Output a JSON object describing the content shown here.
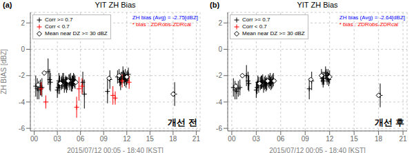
{
  "chart_data": [
    {
      "type": "scatter",
      "title": "YIT ZH Bias",
      "panel_label": "(a)",
      "watermark": "개선 전",
      "xlabel": "2015/07/12 00:05 - 18:40 [KST]",
      "ylabel": "ZH BIAS [dBZ]",
      "xlim": [
        -0.5,
        21.5
      ],
      "ylim": [
        -6.2,
        2.8
      ],
      "xticks": [
        {
          "value": 0,
          "label": "00"
        },
        {
          "value": 3,
          "label": "03"
        },
        {
          "value": 6,
          "label": "06"
        },
        {
          "value": 9,
          "label": "09"
        },
        {
          "value": 12,
          "label": "12"
        },
        {
          "value": 15,
          "label": "15"
        },
        {
          "value": 18,
          "label": "18"
        },
        {
          "value": 21,
          "label": "21"
        }
      ],
      "yticks": [
        -6,
        -4,
        -2,
        0,
        2
      ],
      "grid": true,
      "legend": "upper left",
      "annotations": [
        {
          "text": "ZH bias (Avg) = -2.75[dBZ]",
          "color": "blue"
        },
        {
          "text": "* bias : ZDRobs-ZDRcal",
          "color": "red"
        }
      ],
      "series": [
        {
          "name": "Corr >= 0.7",
          "color": "black",
          "marker": "plus",
          "x": [
            0.2,
            0.4,
            0.6,
            0.8,
            1.0,
            1.8,
            2.0,
            2.1,
            3.0,
            3.1,
            3.2,
            3.3,
            3.5,
            3.6,
            3.7,
            3.8,
            3.9,
            4.0,
            4.1,
            4.2,
            4.3,
            4.5,
            4.6,
            4.7,
            4.8,
            4.9,
            5.0,
            5.1,
            5.2,
            5.3,
            6.3,
            6.5,
            9.5,
            9.8,
            10.8,
            11.0,
            11.1,
            11.2,
            11.3,
            11.5,
            11.6,
            11.7,
            11.8,
            11.9,
            12.0,
            12.1,
            12.2,
            18.2
          ],
          "values": [
            -2.8,
            -3.0,
            -3.1,
            -2.9,
            -2.9,
            -1.7,
            -2.3,
            -2.5,
            -3.1,
            -2.9,
            -2.4,
            -2.7,
            -2.6,
            -2.5,
            -2.4,
            -2.3,
            -2.8,
            -2.6,
            -2.5,
            -2.7,
            -2.6,
            -2.4,
            -2.5,
            -2.3,
            -2.7,
            -2.6,
            -2.5,
            -2.3,
            -2.4,
            -2.5,
            -2.5,
            -3.4,
            -3.2,
            -2.3,
            -2.1,
            -2.0,
            -2.3,
            -2.5,
            -2.2,
            -1.8,
            -2.1,
            -2.3,
            -2.0,
            -2.4,
            -2.2,
            -2.1,
            -1.9,
            -3.4
          ],
          "yerr": [
            0.8,
            0.8,
            0.7,
            0.6,
            0.7,
            1.0,
            0.8,
            0.7,
            0.6,
            0.5,
            0.6,
            0.7,
            0.5,
            0.5,
            0.6,
            0.5,
            0.5,
            0.5,
            0.5,
            0.6,
            0.5,
            0.5,
            0.6,
            0.5,
            0.5,
            0.6,
            0.5,
            0.5,
            0.5,
            0.5,
            0.8,
            1.1,
            0.9,
            0.7,
            0.5,
            0.5,
            0.5,
            0.6,
            0.5,
            0.5,
            0.5,
            0.5,
            0.5,
            0.5,
            0.5,
            0.5,
            0.5,
            0.9
          ]
        },
        {
          "name": "Corr < 0.7",
          "color": "red",
          "marker": "plus",
          "x": [
            0.9,
            1.5,
            5.5,
            5.8,
            6.2,
            10.2,
            10.5,
            11.4,
            12.3
          ],
          "values": [
            -3.0,
            -4.0,
            -4.4,
            -3.0,
            -2.8,
            -3.5,
            -3.7,
            -2.4,
            -2.5
          ],
          "yerr": [
            0.5,
            0.5,
            0.8,
            0.9,
            0.6,
            0.7,
            0.5,
            0.5,
            0.5
          ]
        },
        {
          "name": "Mean near DZ >= 30 dBZ",
          "color": "black",
          "marker": "diamond",
          "x": [
            0.5,
            1.3,
            3.4,
            4.4,
            5.4,
            9.7,
            11.0,
            12.0,
            18.0
          ],
          "values": [
            -2.7,
            -1.8,
            -2.6,
            -2.4,
            -2.5,
            -2.2,
            -2.0,
            -2.1,
            -3.4
          ]
        }
      ]
    },
    {
      "type": "scatter",
      "title": "YIT ZH Bias",
      "panel_label": "(b)",
      "watermark": "개선 후",
      "xlabel": "2015/07/12 00:05 - 18:40 [KST]",
      "xlim": [
        -0.5,
        21.5
      ],
      "ylim": [
        -6.2,
        2.8
      ],
      "xticks": [
        {
          "value": 0,
          "label": "00"
        },
        {
          "value": 3,
          "label": "03"
        },
        {
          "value": 6,
          "label": "06"
        },
        {
          "value": 9,
          "label": "09"
        },
        {
          "value": 12,
          "label": "12"
        },
        {
          "value": 15,
          "label": "15"
        },
        {
          "value": 18,
          "label": "18"
        },
        {
          "value": 21,
          "label": "21"
        }
      ],
      "yticks": [
        -6,
        -4,
        -2,
        0,
        2
      ],
      "grid": true,
      "legend": "upper left",
      "annotations": [
        {
          "text": "ZH bias (Avg) = -2.64[dBZ]",
          "color": "blue"
        },
        {
          "text": "* bias : ZDRobs-ZDRcal",
          "color": "red"
        }
      ],
      "series": [
        {
          "name": "Corr >= 0.7",
          "color": "black",
          "marker": "plus",
          "x": [
            0.2,
            0.4,
            0.6,
            0.8,
            1.0,
            1.8,
            2.0,
            2.1,
            3.0,
            3.1,
            3.2,
            3.3,
            3.5,
            3.6,
            3.7,
            3.8,
            3.9,
            4.0,
            4.1,
            4.2,
            4.3,
            4.5,
            4.6,
            4.7,
            4.8,
            4.9,
            5.0,
            5.1,
            9.5,
            9.8,
            11.0,
            11.1,
            11.2,
            11.3,
            11.5,
            11.6,
            11.7,
            11.8,
            11.9,
            12.0,
            18.2
          ],
          "values": [
            -2.9,
            -3.1,
            -3.2,
            -3.0,
            -2.9,
            -2.0,
            -2.4,
            -2.6,
            -3.1,
            -2.9,
            -2.5,
            -2.7,
            -2.6,
            -2.5,
            -2.5,
            -2.4,
            -2.8,
            -2.6,
            -2.5,
            -2.7,
            -2.6,
            -2.4,
            -2.5,
            -2.3,
            -2.6,
            -2.5,
            -2.4,
            -2.3,
            -3.0,
            -2.4,
            -2.0,
            -2.2,
            -2.4,
            -2.2,
            -1.8,
            -2.0,
            -2.2,
            -2.0,
            -2.3,
            -2.1,
            -3.5
          ],
          "yerr": [
            0.7,
            0.7,
            0.6,
            0.6,
            0.6,
            0.8,
            0.7,
            0.6,
            0.6,
            0.5,
            0.5,
            0.6,
            0.5,
            0.5,
            0.5,
            0.5,
            0.5,
            0.5,
            0.5,
            0.5,
            0.5,
            0.5,
            0.5,
            0.5,
            0.5,
            0.5,
            0.5,
            0.5,
            0.8,
            0.7,
            0.5,
            0.5,
            0.5,
            0.5,
            0.5,
            0.5,
            0.5,
            0.5,
            0.5,
            0.5,
            0.9
          ]
        },
        {
          "name": "Corr < 0.7",
          "color": "red",
          "marker": "plus",
          "x": [],
          "values": [],
          "yerr": []
        },
        {
          "name": "Mean near DZ >= 30 dBZ",
          "color": "black",
          "marker": "diamond",
          "x": [
            0.5,
            1.3,
            3.4,
            4.4,
            5.2,
            9.7,
            11.0,
            12.0,
            18.0
          ],
          "values": [
            -2.8,
            -2.0,
            -2.6,
            -2.4,
            -2.4,
            -2.3,
            -2.0,
            -2.1,
            -3.5
          ]
        }
      ]
    }
  ]
}
